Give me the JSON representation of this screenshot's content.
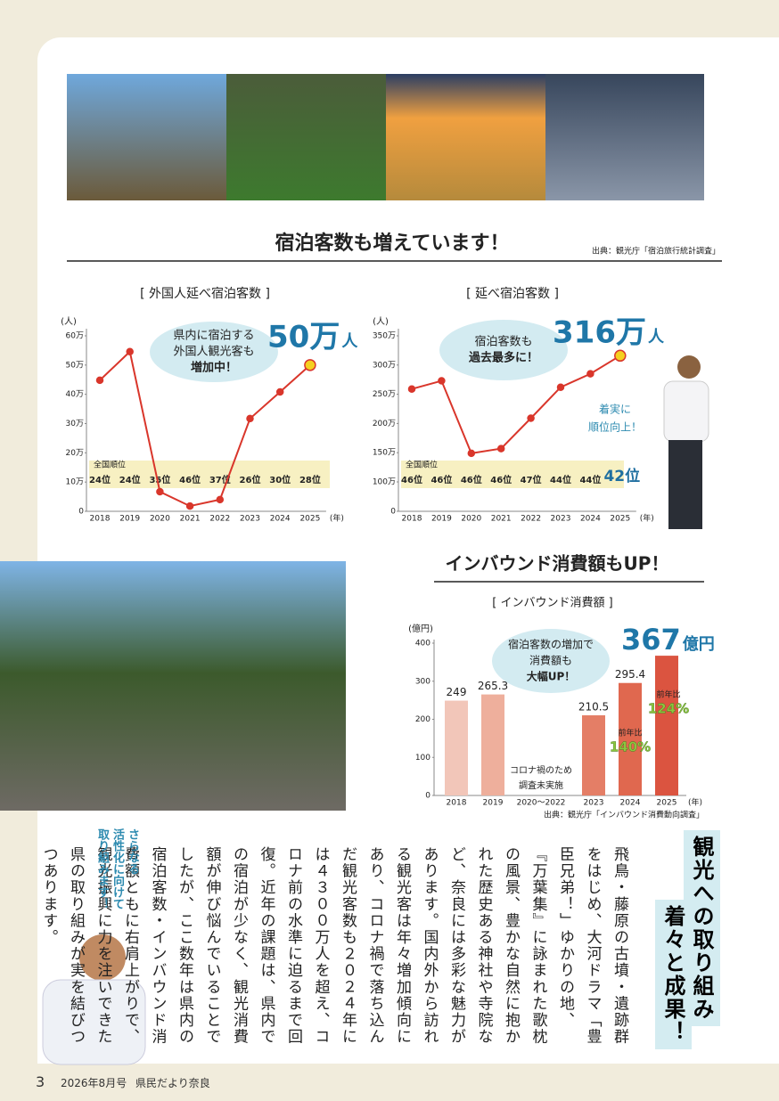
{
  "header": {
    "section_title": "宿泊客数も増えています！",
    "source": "出典：観光庁「宿泊旅行統計調査」"
  },
  "chart_data": [
    {
      "type": "line",
      "title": "[ 外国人延べ宿泊客数 ]",
      "y_label": "(人)",
      "x_label": "(年)",
      "categories": [
        "2018",
        "2019",
        "2020",
        "2021",
        "2022",
        "2023",
        "2024",
        "2025"
      ],
      "values": [
        448000,
        546000,
        67000,
        18000,
        40000,
        317000,
        408000,
        500000
      ],
      "color": "#d9362b",
      "highlight_color": "#f5d020",
      "ylim": [
        0,
        600000
      ],
      "yticks": [
        0,
        {
          "value": 100000,
          "label": "10万"
        },
        {
          "value": 200000,
          "label": "20万"
        },
        {
          "value": 300000,
          "label": "30万"
        },
        {
          "value": 400000,
          "label": "40万"
        },
        {
          "value": 500000,
          "label": "50万"
        },
        {
          "value": 600000,
          "label": "60万"
        }
      ],
      "rank_label": "全国順位",
      "ranks": [
        "24位",
        "24位",
        "35位",
        "46位",
        "37位",
        "26位",
        "30位",
        "28位"
      ],
      "callout": [
        "県内に宿泊する",
        "外国人観光客も",
        "増加中！"
      ],
      "highlight": "50万",
      "highlight_unit": "人"
    },
    {
      "type": "line",
      "title": "[ 延べ宿泊客数 ]",
      "y_label": "(人)",
      "x_label": "(年)",
      "categories": [
        "2018",
        "2019",
        "2020",
        "2021",
        "2022",
        "2023",
        "2024",
        "2025"
      ],
      "values": [
        2590000,
        2730000,
        1490000,
        1570000,
        2090000,
        2620000,
        2850000,
        3160000
      ],
      "color": "#d9362b",
      "highlight_color": "#f5d020",
      "ylim": [
        0,
        3500000
      ],
      "yticks": [
        0,
        {
          "value": 1000000,
          "label": "100万"
        },
        {
          "value": 1500000,
          "label": "150万"
        },
        {
          "value": 2000000,
          "label": "200万"
        },
        {
          "value": 2500000,
          "label": "250万"
        },
        {
          "value": 3000000,
          "label": "300万"
        },
        {
          "value": 3500000,
          "label": "350万"
        }
      ],
      "rank_label": "全国順位",
      "ranks": [
        "46位",
        "46位",
        "46位",
        "46位",
        "47位",
        "44位",
        "44位",
        "42位"
      ],
      "callout": [
        "宿泊客数も",
        "過去最多に！"
      ],
      "highlight": "316万",
      "highlight_unit": "人",
      "note": [
        "着実に",
        "順位向上！"
      ]
    },
    {
      "type": "bar",
      "heading": "インバウンド消費額もUP！",
      "title": "[ インバウンド消費額 ]",
      "y_label": "(億円)",
      "x_label": "(年)",
      "categories": [
        "2018",
        "2019",
        "2020〜2022",
        "2023",
        "2024",
        "2025"
      ],
      "values": [
        249,
        265.3,
        null,
        210.5,
        295.4,
        367
      ],
      "colors": [
        "#f2c6b9",
        "#eeaf9c",
        "#e9967f",
        "#e47e66",
        "#e0684f",
        "#db5440"
      ],
      "ylim": [
        0,
        400
      ],
      "yticks": [
        0,
        100,
        200,
        300,
        400
      ],
      "missing_note": [
        "コロナ禍のため",
        "調査未実施"
      ],
      "growth": [
        {
          "prefix": "前年比",
          "label": "140%"
        },
        {
          "prefix": "前年比",
          "label": "124%"
        }
      ],
      "callout": [
        "宿泊客数の増加で",
        "消費額も",
        "大幅UP！"
      ],
      "highlight_unit": "億円",
      "source": "出典：観光庁「インバウンド消費動向調査」"
    }
  ],
  "article": {
    "heading": [
      "観光への取り組み",
      "着々と成果！"
    ],
    "body": "飛鳥・藤原の古墳・遺跡群をはじめ、大河ドラマ「豊臣兄弟！」ゆかりの地、『万葉集』に詠まれた歌枕の風景、豊かな自然に抱かれた歴史ある神社や寺院など、奈良には多彩な魅力があります。国内外から訪れる観光客は年々増加傾向にあり、コロナ禍で落ち込んだ観光客数も２０２４年には４３００万人を超え、コロナ前の水準に迫るまで回復。近年の課題は、県内での宿泊が少なく、観光消費額が伸び悩んでいることでしたが、ここ数年は県内の宿泊客数・インバウンド消費額ともに右肩上がりで、観光振興に力を注いできた県の取り組みが実を結びつつあります。",
    "aside": [
      "さらなる",
      "活性化に向けて",
      "取り組みます！"
    ]
  },
  "footer": {
    "page": "3",
    "issue": "2026年8月号",
    "publication": "県民だより奈良"
  }
}
